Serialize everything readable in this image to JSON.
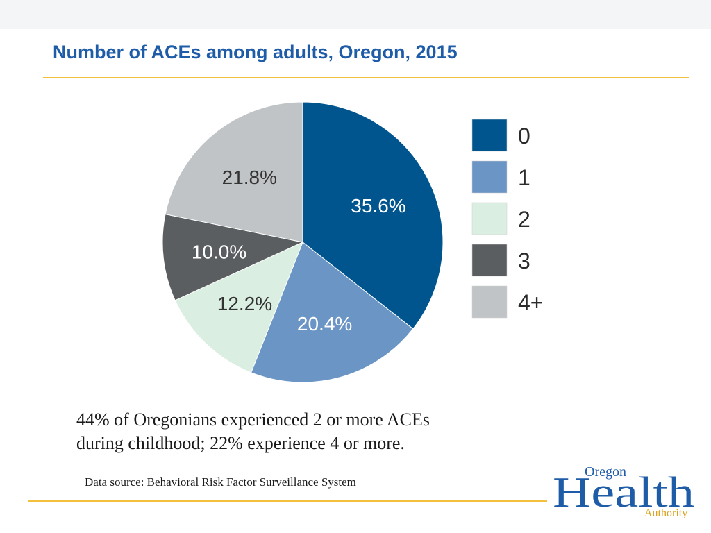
{
  "slide": {
    "title": "Number of ACEs among adults, Oregon, 2015",
    "summary_line1": "44% of Oregonians experienced 2 or more ACEs",
    "summary_line2": "during childhood; 22% experience 4 or more.",
    "source": "Data source: Behavioral Risk Factor Surveillance System"
  },
  "logo": {
    "word_top": "Oregon",
    "word_main": "Health",
    "word_bottom": "Authority",
    "brand_color": "#1f5ca8",
    "accent_color": "#f2c03a"
  },
  "colors": {
    "title": "#1f5ca8",
    "rule": "#f2c03a"
  },
  "chart_data": {
    "type": "pie",
    "title": "Number of ACEs among adults, Oregon, 2015",
    "legend_position": "right",
    "slices": [
      {
        "label": "0",
        "value": 35.6,
        "display": "35.6%",
        "color": "#00558f",
        "label_color": "#ffffff"
      },
      {
        "label": "1",
        "value": 20.4,
        "display": "20.4%",
        "color": "#6b95c4",
        "label_color": "#ffffff"
      },
      {
        "label": "2",
        "value": 12.2,
        "display": "12.2%",
        "color": "#daeee2",
        "label_color": "#333333"
      },
      {
        "label": "3",
        "value": 10.0,
        "display": "10.0%",
        "color": "#5b5e60",
        "label_color": "#ffffff"
      },
      {
        "label": "4+",
        "value": 21.8,
        "display": "21.8%",
        "color": "#c1c4c6",
        "label_color": "#333333"
      }
    ]
  }
}
